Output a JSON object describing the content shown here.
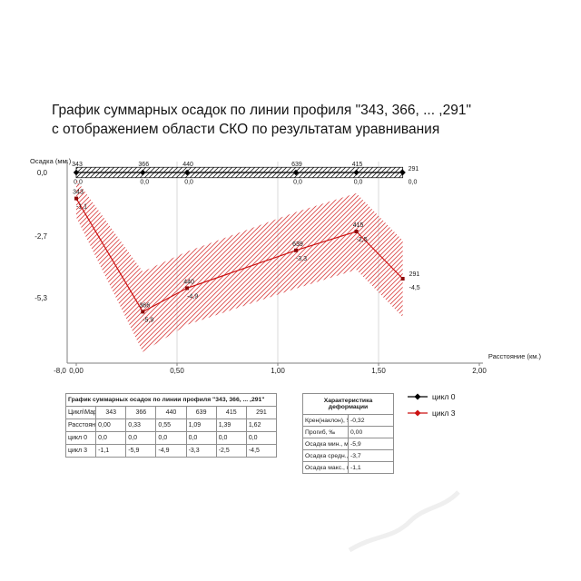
{
  "title": {
    "line1": "График суммарных осадок по линии профиля \"343, 366, ... ,291\"",
    "line2": "с отображением области СКО по результатам уравнивания"
  },
  "chart_data": {
    "type": "line",
    "ylabel": "Осадка (мм.)",
    "xlabel": "Расстояние (км.)",
    "x_ticks": [
      "0,00",
      "0,50",
      "1,00",
      "1,50",
      "2,00"
    ],
    "x_tick_values": [
      0,
      0.5,
      1,
      1.5,
      2
    ],
    "y_ticks": [
      "0,0",
      "-2,7",
      "-5,3"
    ],
    "y_tick_values": [
      0,
      -2.7,
      -5.3
    ],
    "y_min_label": "-8,0",
    "xlim": [
      0,
      2
    ],
    "ylim": [
      -8,
      0.6
    ],
    "grid": "vertical-light",
    "marks": [
      "343",
      "366",
      "440",
      "639",
      "415",
      "291"
    ],
    "distances_km": [
      0.0,
      0.33,
      0.55,
      1.09,
      1.39,
      1.62
    ],
    "series": [
      {
        "name": "цикл 0",
        "color": "#000000",
        "values": [
          0,
          0,
          0,
          0,
          0,
          0
        ],
        "value_labels": [
          "0,0",
          "0,0",
          "0,0",
          "0,0",
          "0,0",
          "0,0"
        ],
        "sko_halfwidth_mm": [
          0.22,
          0.22,
          0.22,
          0.22,
          0.22,
          0.22
        ],
        "hatch": "black"
      },
      {
        "name": "цикл 3",
        "color": "#cc1111",
        "values": [
          -1.1,
          -5.9,
          -4.9,
          -3.3,
          -2.5,
          -4.5
        ],
        "value_labels": [
          "-1,1",
          "-5,9",
          "-4,9",
          "-3,3",
          "-2,5",
          "-4,5"
        ],
        "sko_halfwidth_mm": [
          0.8,
          1.7,
          1.55,
          1.62,
          1.62,
          1.62
        ],
        "hatch": "red"
      }
    ],
    "legend": [
      {
        "label": "цикл 0",
        "color": "#000000"
      },
      {
        "label": "цикл 3",
        "color": "#cc1111"
      }
    ],
    "legend_position": "right-below-chart"
  },
  "left_table": {
    "title": "График суммарных осадок по линии профиля \"343, 366, ... ,291\"",
    "header": [
      "Цикл\\Марка",
      "343",
      "366",
      "440",
      "639",
      "415",
      "291"
    ],
    "rows": [
      [
        "Расстояние (км.)",
        "0,00",
        "0,33",
        "0,55",
        "1,09",
        "1,39",
        "1,62"
      ],
      [
        "цикл 0",
        "0,0",
        "0,0",
        "0,0",
        "0,0",
        "0,0",
        "0,0"
      ],
      [
        "цикл 3",
        "-1,1",
        "-5,9",
        "-4,9",
        "-3,3",
        "-2,5",
        "-4,5"
      ]
    ]
  },
  "right_table": {
    "title_line1": "Характеристика",
    "title_line2": "деформации",
    "rows": [
      [
        "Крен(наклон), ‰",
        "-0,32"
      ],
      [
        "Прогиб, ‰",
        "0,00"
      ],
      [
        "Осадка мин., мм",
        "-5,9"
      ],
      [
        "Осадка средн., мм",
        "-3,7"
      ],
      [
        "Осадка макс., мм",
        "-1,1"
      ]
    ]
  }
}
